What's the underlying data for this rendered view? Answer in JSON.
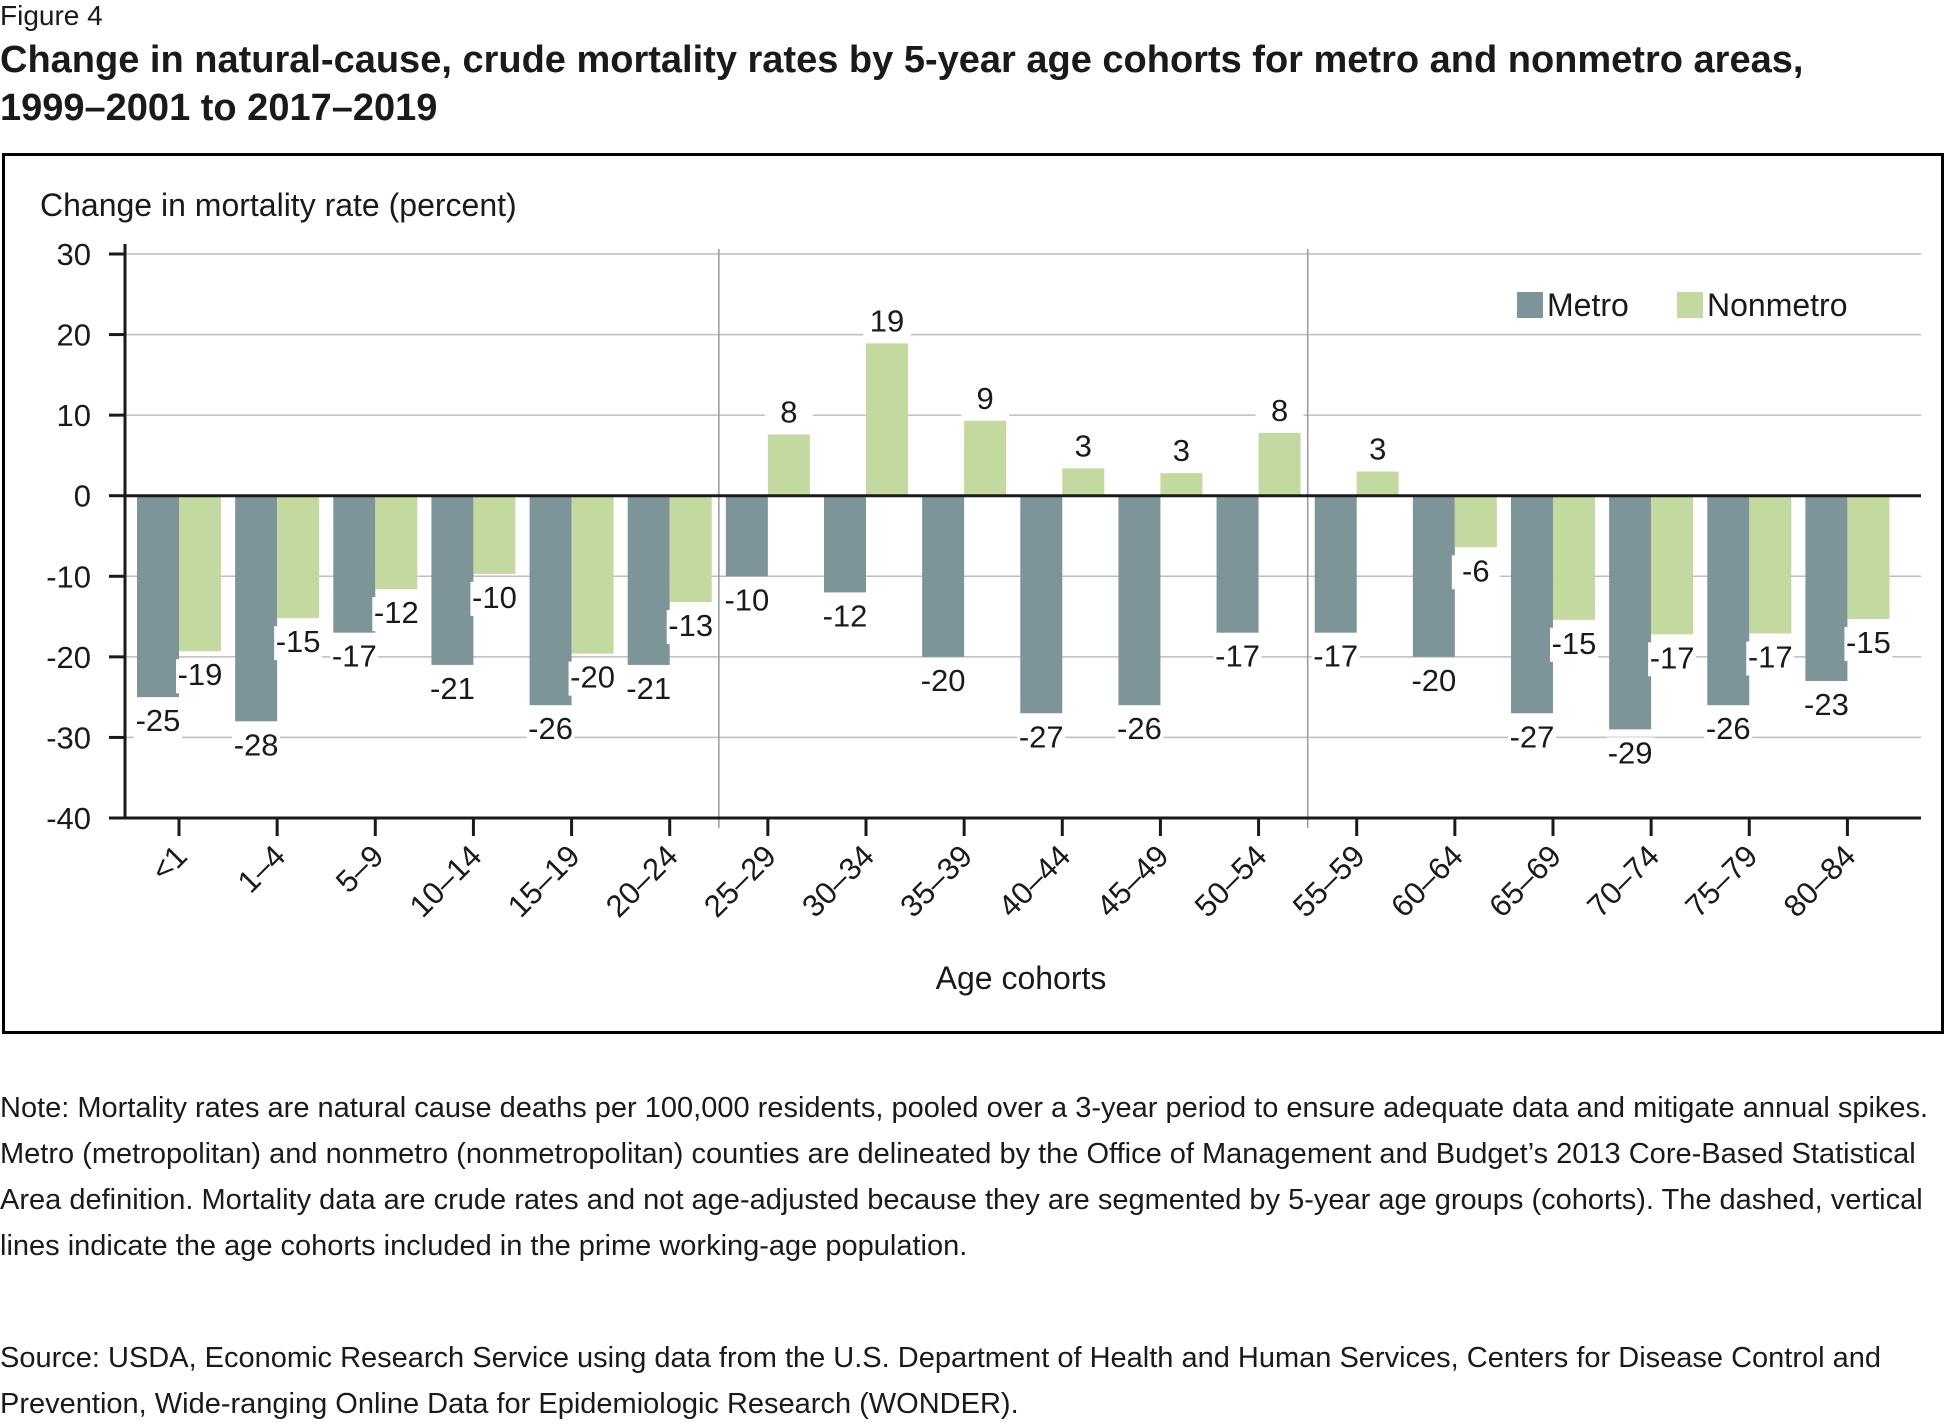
{
  "figure_label": "Figure 4",
  "title": "Change in natural-cause, crude mortality rates by 5-year age cohorts for metro and nonmetro areas, 1999–2001 to 2017–2019",
  "note": "Note: Mortality rates are natural cause deaths per 100,000 residents, pooled over a 3-year period to ensure adequate data and mitigate annual spikes. Metro (metropolitan) and nonmetro (nonmetropolitan) counties are delineated by the Office of Management and Budget’s 2013 Core-Based Statistical Area definition. Mortality data are crude rates and not age-adjusted because they are segmented by 5-year age groups (cohorts). The dashed, vertical lines indicate the age cohorts included in the prime working-age population.",
  "source": "Source: USDA, Economic Research Service using data from the U.S. Department of Health and Human Services, Centers for Disease Control and Prevention, Wide-ranging Online Data for Epidemiologic Research (WONDER).",
  "chart_data": {
    "type": "bar",
    "ylabel": "Change in mortality rate (percent)",
    "xlabel": "Age cohorts",
    "ylim": [
      -40,
      30
    ],
    "yticks": [
      30,
      20,
      10,
      0,
      -10,
      -20,
      -30,
      -40
    ],
    "grid": true,
    "legend_position": "top-right",
    "categories": [
      "<1",
      "1–4",
      "5–9",
      "10–14",
      "15–19",
      "20–24",
      "25–29",
      "30–34",
      "35–39",
      "40–44",
      "45–49",
      "50–54",
      "55–59",
      "60–64",
      "65–69",
      "70–74",
      "75–79",
      "80–84"
    ],
    "series": [
      {
        "name": "Metro",
        "color": "#7d9599",
        "values": [
          -25,
          -28,
          -17,
          -21,
          -26,
          -21,
          -10,
          -12,
          -20,
          -27,
          -26,
          -17,
          -17,
          -20,
          -27,
          -29,
          -26,
          -23
        ],
        "labels": [
          "-25",
          "-28",
          "-17",
          "-21",
          "-26",
          "-21",
          "-10",
          "-12",
          "-20",
          "-27",
          "-26",
          "-17",
          "-17",
          "-20",
          "-27",
          "-29",
          "-26",
          "-23"
        ]
      },
      {
        "name": "Nonmetro",
        "color": "#c3d9a0",
        "values": [
          -19.3,
          -15.2,
          -11.6,
          -9.7,
          -19.6,
          -13.2,
          7.6,
          18.9,
          9.3,
          3.4,
          2.8,
          7.8,
          3.0,
          -6.4,
          -15.4,
          -17.2,
          -17.1,
          -15.3
        ],
        "labels": [
          "-19",
          "-15",
          "-12",
          "-10",
          "-20",
          "-13",
          "8",
          "19",
          "9",
          "3",
          "3",
          "8",
          "3",
          "-6",
          "-15",
          "-17",
          "-17",
          "-15"
        ]
      }
    ],
    "prime_working_age_bounds": [
      "25–29",
      "55–59"
    ]
  }
}
